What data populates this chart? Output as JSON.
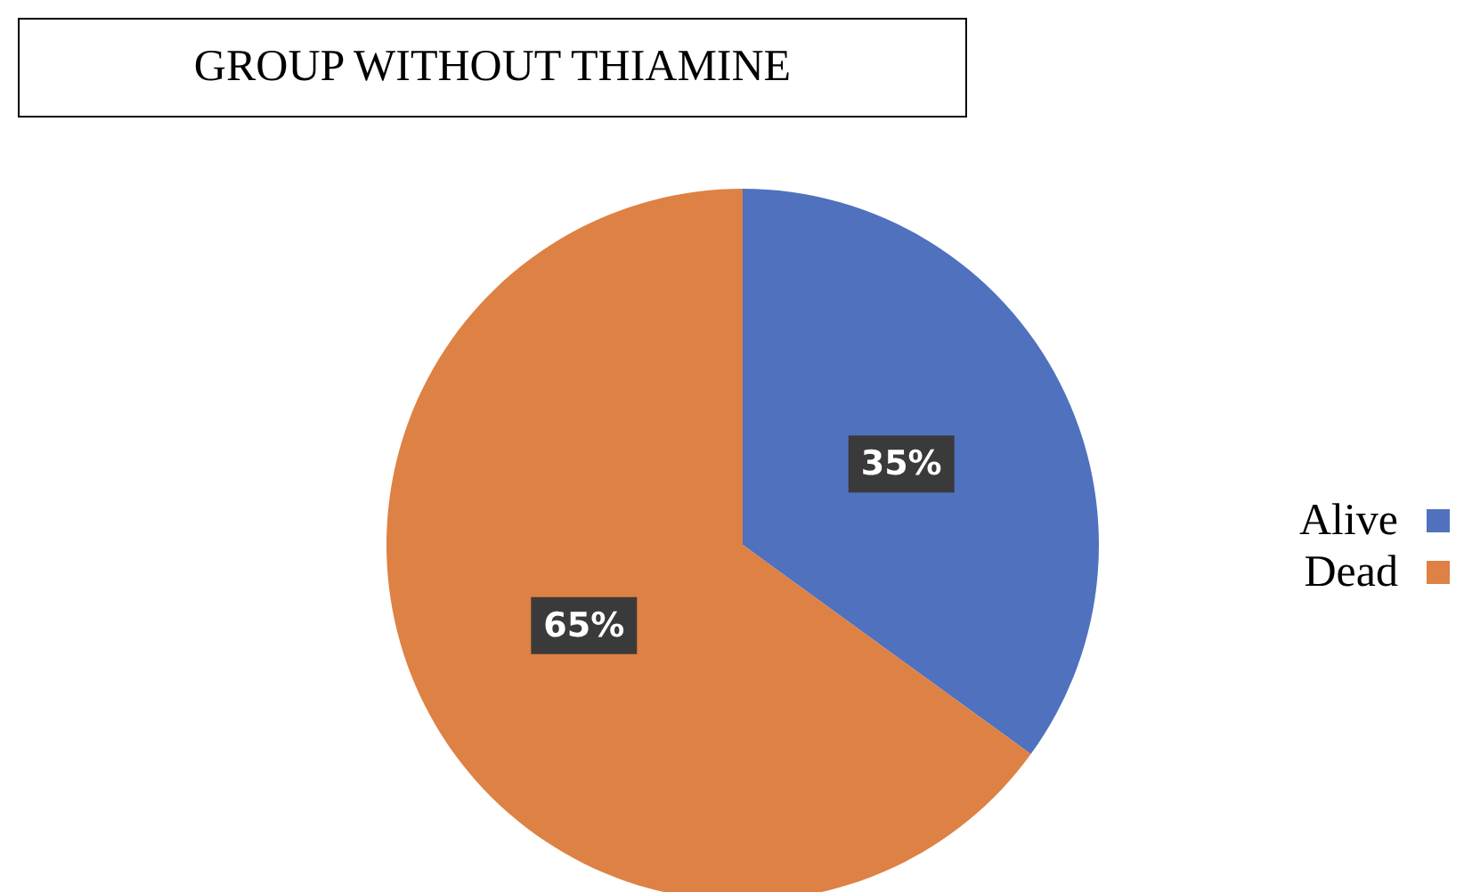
{
  "chart_data": {
    "type": "pie",
    "title": "GROUP WITHOUT THIAMINE",
    "categories": [
      "Alive",
      "Dead"
    ],
    "values": [
      35,
      65
    ],
    "colors": [
      "#4f71be",
      "#dd8144"
    ],
    "value_labels": [
      "35%",
      "65%"
    ],
    "legend": "right"
  }
}
